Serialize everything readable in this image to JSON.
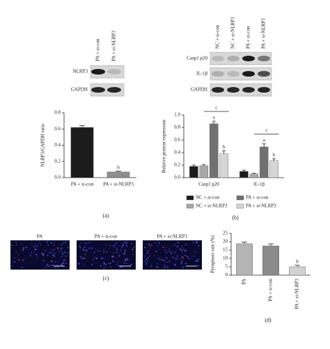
{
  "chart_data": [
    {
      "type": "bar",
      "y_label": "NLRP3/GAPDH ratio",
      "categories": [
        "PA + si-con",
        "PA + si-NLRP3"
      ],
      "values": [
        0.62,
        0.07
      ],
      "errors": [
        0.02,
        0.01
      ],
      "colors": [
        "#1c1c1c",
        "#8e8e8e"
      ],
      "annotations": [
        null,
        "b"
      ],
      "ylim": [
        0,
        0.8
      ],
      "yticks": [
        {
          "value": 0,
          "label": "0.0"
        },
        {
          "value": 0.2,
          "label": "0.2"
        },
        {
          "value": 0.4,
          "label": "0.4"
        },
        {
          "value": 0.6,
          "label": "0.6"
        },
        {
          "value": 0.8,
          "label": "0.8"
        }
      ]
    },
    {
      "type": "grouped_bar",
      "y_label": "Relative protein expression",
      "categories": [
        "Casp1 p20",
        "IL-1β"
      ],
      "series": [
        {
          "name": "NC + si-con",
          "color": "#1c1c1c",
          "values": [
            0.18,
            0.1
          ],
          "errors": [
            0.02,
            0.02
          ],
          "annotations": [
            null,
            null
          ]
        },
        {
          "name": "NC + si-NLRP3",
          "color": "#a8a8a8",
          "values": [
            0.19,
            0.06
          ],
          "errors": [
            0.02,
            0.01
          ],
          "annotations": [
            null,
            null
          ]
        },
        {
          "name": "PA + si-con",
          "color": "#707070",
          "values": [
            0.86,
            0.49
          ],
          "errors": [
            0.04,
            0.05
          ],
          "annotations": [
            "a",
            "a"
          ]
        },
        {
          "name": "PA + si-NLRP3",
          "color": "#d6d6d6",
          "values": [
            0.38,
            0.27
          ],
          "errors": [
            0.05,
            0.03
          ],
          "annotations": [
            "b",
            "b"
          ]
        }
      ],
      "brackets": [
        "c",
        "c"
      ],
      "ylim": [
        0,
        1.0
      ],
      "yticks": [
        {
          "value": 0,
          "label": "0.0"
        },
        {
          "value": 0.2,
          "label": "0.2"
        },
        {
          "value": 0.4,
          "label": "0.4"
        },
        {
          "value": 0.6,
          "label": "0.6"
        },
        {
          "value": 0.8,
          "label": "0.8"
        },
        {
          "value": 1.0,
          "label": "1.0"
        }
      ]
    },
    {
      "type": "bar",
      "y_label": "Pyroptosis rate (%)",
      "categories": [
        "PA",
        "PA + si-con",
        "PA + si-NLRP3"
      ],
      "values": [
        18.8,
        17.5,
        5.0
      ],
      "errors": [
        1.0,
        1.2,
        0.9
      ],
      "colors": [
        "#b4b4b4",
        "#8a8a8a",
        "#d2d2d2"
      ],
      "annotations": [
        null,
        null,
        "b"
      ],
      "ylim": [
        0,
        25
      ],
      "yticks": [
        0,
        5,
        10,
        15,
        20,
        25
      ]
    }
  ],
  "blot_a": {
    "columns": [
      "PA + si-con",
      "PA + si-NLRP3"
    ],
    "rows": [
      "NLRP3",
      "GAPDH"
    ]
  },
  "blot_b": {
    "columns": [
      "NC + si-con",
      "NC + si-NLRP3",
      "PA + si-con",
      "PA + si-NLRP3"
    ],
    "rows": [
      "Casp1 p20",
      "IL-1β",
      "GAPDH"
    ]
  },
  "images_c": [
    "PA",
    "PA + si-con",
    "PA + si-NLRP3"
  ],
  "panel_labels": [
    "(a)",
    "(b)",
    "(c)",
    "(d)"
  ]
}
